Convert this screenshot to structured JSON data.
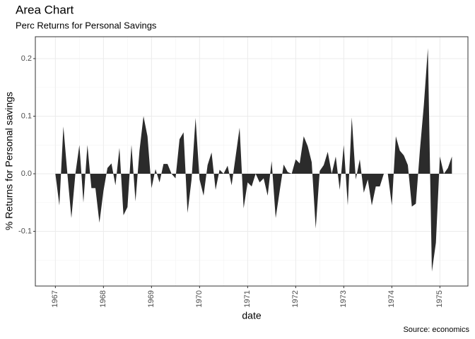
{
  "chart_data": {
    "type": "area",
    "title": "Area Chart",
    "subtitle": "Perc Returns for Personal Savings",
    "x_label": "date",
    "y_label": "% Returns for Personal savings",
    "caption": "Source: economics",
    "color": "#2b2b2b",
    "grid": true,
    "x": [
      "1967-07",
      "1967-08",
      "1967-09",
      "1967-10",
      "1967-11",
      "1967-12",
      "1968-01",
      "1968-02",
      "1968-03",
      "1968-04",
      "1968-05",
      "1968-06",
      "1968-07",
      "1968-08",
      "1968-09",
      "1968-10",
      "1968-11",
      "1968-12",
      "1969-01",
      "1969-02",
      "1969-03",
      "1969-04",
      "1969-05",
      "1969-06",
      "1969-07",
      "1969-08",
      "1969-09",
      "1969-10",
      "1969-11",
      "1969-12",
      "1970-01",
      "1970-02",
      "1970-03",
      "1970-04",
      "1970-05",
      "1970-06",
      "1970-07",
      "1970-08",
      "1970-09",
      "1970-10",
      "1970-11",
      "1970-12",
      "1971-01",
      "1971-02",
      "1971-03",
      "1971-04",
      "1971-05",
      "1971-06",
      "1971-07",
      "1971-08",
      "1971-09",
      "1971-10",
      "1971-11",
      "1971-12",
      "1972-01",
      "1972-02",
      "1972-03",
      "1972-04",
      "1972-05",
      "1972-06",
      "1972-07",
      "1972-08",
      "1972-09",
      "1972-10",
      "1972-11",
      "1972-12",
      "1973-01",
      "1973-02",
      "1973-03",
      "1973-04",
      "1973-05",
      "1973-06",
      "1973-07",
      "1973-08",
      "1973-09",
      "1973-10",
      "1973-11",
      "1973-12",
      "1974-01",
      "1974-02",
      "1974-03",
      "1974-04",
      "1974-05",
      "1974-06",
      "1974-07",
      "1974-08",
      "1974-09",
      "1974-10",
      "1974-11",
      "1974-12",
      "1975-01",
      "1975-02",
      "1975-03",
      "1975-04",
      "1975-05",
      "1975-06",
      "1975-07",
      "1975-08",
      "1975-09",
      "1975-10"
    ],
    "values": [
      0,
      -0.055,
      0.082,
      0.0,
      -0.077,
      0.0,
      0.05,
      -0.05,
      0.05,
      -0.025,
      -0.025,
      -0.085,
      -0.03,
      0.01,
      0.018,
      -0.02,
      0.045,
      -0.072,
      -0.058,
      0.05,
      -0.048,
      0.04,
      0.1,
      0.065,
      -0.025,
      0.008,
      -0.015,
      0.017,
      0.017,
      0.0,
      -0.008,
      0.06,
      0.072,
      -0.068,
      -0.01,
      0.097,
      -0.01,
      -0.038,
      0.015,
      0.037,
      -0.028,
      0.007,
      0.0,
      0.014,
      -0.02,
      0.03,
      0.08,
      -0.06,
      -0.015,
      -0.022,
      0.0,
      -0.015,
      -0.008,
      -0.038,
      0.022,
      -0.077,
      -0.03,
      0.016,
      0.003,
      0.0,
      0.025,
      0.018,
      0.065,
      0.048,
      0.02,
      -0.095,
      0.005,
      0.015,
      0.038,
      0.0,
      0.03,
      -0.028,
      0.05,
      -0.055,
      0.098,
      -0.01,
      0.025,
      -0.033,
      -0.01,
      -0.055,
      -0.022,
      -0.022,
      0.0,
      0.0,
      -0.055,
      0.065,
      0.04,
      0.032,
      0.015,
      -0.057,
      -0.052,
      0.04,
      0.12,
      0.218,
      -0.17,
      -0.12,
      0.03,
      0.0,
      0.01,
      0.03
    ],
    "xlim": [
      "1967-02",
      "1976-02"
    ],
    "xticks": [
      {
        "value": "1967-07",
        "label": "1967"
      },
      {
        "value": "1968-07",
        "label": "1968"
      },
      {
        "value": "1969-07",
        "label": "1969"
      },
      {
        "value": "1970-07",
        "label": "1970"
      },
      {
        "value": "1971-07",
        "label": "1971"
      },
      {
        "value": "1972-07",
        "label": "1972"
      },
      {
        "value": "1973-07",
        "label": "1973"
      },
      {
        "value": "1974-07",
        "label": "1974"
      },
      {
        "value": "1975-07",
        "label": "1975"
      }
    ],
    "ylim": [
      -0.195,
      0.238
    ],
    "yticks": [
      -0.1,
      {
        "value": 0,
        "label": "0.0"
      },
      0.1,
      0.2
    ]
  }
}
